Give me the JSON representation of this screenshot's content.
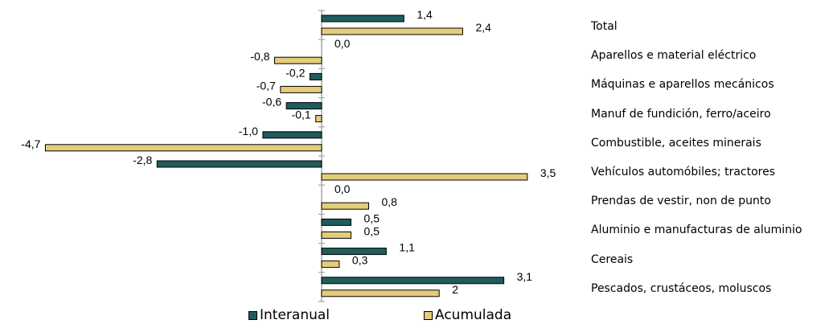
{
  "chart_data": {
    "type": "bar",
    "orientation": "horizontal",
    "categories": [
      "Total",
      "Aparellos e material eléctrico",
      "Máquinas e aparellos mecánicos",
      "Manuf de fundición, ferro/aceiro",
      "Combustible, aceites minerais",
      "Vehículos automóbiles; tractores",
      "Prendas de vestir, non de punto",
      "Aluminio e manufacturas de aluminio",
      "Cereais",
      "Pescados, crustáceos, moluscos"
    ],
    "series": [
      {
        "name": "Interanual",
        "color": "#1f5c5c",
        "values": [
          1.4,
          0.0,
          -0.2,
          -0.6,
          -1.0,
          -2.8,
          0.0,
          0.5,
          1.1,
          3.1
        ],
        "labels": [
          "1,4",
          "0,0",
          "-0,2",
          "-0,6",
          "-1,0",
          "-2,8",
          "0,0",
          "0,5",
          "1,1",
          "3,1"
        ]
      },
      {
        "name": "Acumulada",
        "color": "#e5cc7a",
        "values": [
          2.4,
          -0.8,
          -0.7,
          -0.1,
          -4.7,
          3.5,
          0.8,
          0.5,
          0.3,
          2.0
        ],
        "labels": [
          "2,4",
          "-0,8",
          "-0,7",
          "-0,1",
          "-4,7",
          "3,5",
          "0,8",
          "0,5",
          "0,3",
          "2"
        ]
      }
    ],
    "legend_position": "bottom",
    "grid": false
  }
}
